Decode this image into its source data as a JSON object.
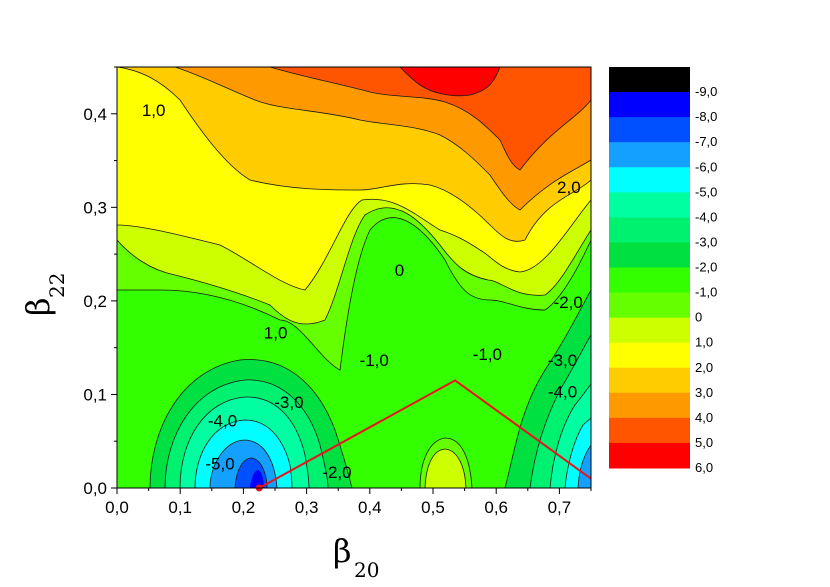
{
  "chart_data": {
    "type": "heatmap",
    "subtype": "filled-contour",
    "xlabel": "β",
    "xlabel_sub": "20",
    "ylabel": "β",
    "ylabel_sub": "22",
    "xlim": [
      0.0,
      0.75
    ],
    "ylim": [
      0.0,
      0.45
    ],
    "x_ticks": [
      {
        "value": 0.0,
        "label": "0,0"
      },
      {
        "value": 0.1,
        "label": "0,1"
      },
      {
        "value": 0.2,
        "label": "0,2"
      },
      {
        "value": 0.3,
        "label": "0,3"
      },
      {
        "value": 0.4,
        "label": "0,4"
      },
      {
        "value": 0.5,
        "label": "0,5"
      },
      {
        "value": 0.6,
        "label": "0,6"
      },
      {
        "value": 0.7,
        "label": "0,7"
      }
    ],
    "y_ticks": [
      {
        "value": 0.0,
        "label": "0,0"
      },
      {
        "value": 0.1,
        "label": "0,1"
      },
      {
        "value": 0.2,
        "label": "0,2"
      },
      {
        "value": 0.3,
        "label": "0,3"
      },
      {
        "value": 0.4,
        "label": "0,4"
      }
    ],
    "colorbar": [
      {
        "label": "-9,0",
        "color": "#000000"
      },
      {
        "label": "-8,0",
        "color": "#0000ff"
      },
      {
        "label": "-7,0",
        "color": "#0050ff"
      },
      {
        "label": "-6,0",
        "color": "#14a0ff"
      },
      {
        "label": "-5,0",
        "color": "#00ffff"
      },
      {
        "label": "-4,0",
        "color": "#00ffa0"
      },
      {
        "label": "-3,0",
        "color": "#00f070"
      },
      {
        "label": "-2,0",
        "color": "#00e040"
      },
      {
        "label": "-1,0",
        "color": "#33ff00"
      },
      {
        "label": "0",
        "color": "#66ff00"
      },
      {
        "label": "1,0",
        "color": "#ccff00"
      },
      {
        "label": "2,0",
        "color": "#ffff00"
      },
      {
        "label": "3,0",
        "color": "#ffcc00"
      },
      {
        "label": "4,0",
        "color": "#ff9900"
      },
      {
        "label": "5,0",
        "color": "#ff5500"
      },
      {
        "label": "6,0",
        "color": "#ff0000"
      }
    ],
    "contour_labels": [
      {
        "text": "1,0",
        "x": 0.058,
        "y": 0.404
      },
      {
        "text": "2,0",
        "x": 0.715,
        "y": 0.322
      },
      {
        "text": "0",
        "x": 0.447,
        "y": 0.233
      },
      {
        "text": "-2,0",
        "x": 0.714,
        "y": 0.199
      },
      {
        "text": "1,0",
        "x": 0.251,
        "y": 0.166
      },
      {
        "text": "-1,0",
        "x": 0.407,
        "y": 0.137
      },
      {
        "text": "-1,0",
        "x": 0.586,
        "y": 0.143
      },
      {
        "text": "-3,0",
        "x": 0.705,
        "y": 0.137
      },
      {
        "text": "-3,0",
        "x": 0.272,
        "y": 0.092
      },
      {
        "text": "-4,0",
        "x": 0.705,
        "y": 0.103
      },
      {
        "text": "-4,0",
        "x": 0.167,
        "y": 0.072
      },
      {
        "text": "-5,0",
        "x": 0.163,
        "y": 0.026
      },
      {
        "text": "-2,0",
        "x": 0.348,
        "y": 0.017
      }
    ],
    "path_line": {
      "color": "#e8141e",
      "points": [
        [
          0.225,
          0.0
        ],
        [
          0.535,
          0.115
        ],
        [
          0.75,
          0.01
        ]
      ]
    }
  }
}
